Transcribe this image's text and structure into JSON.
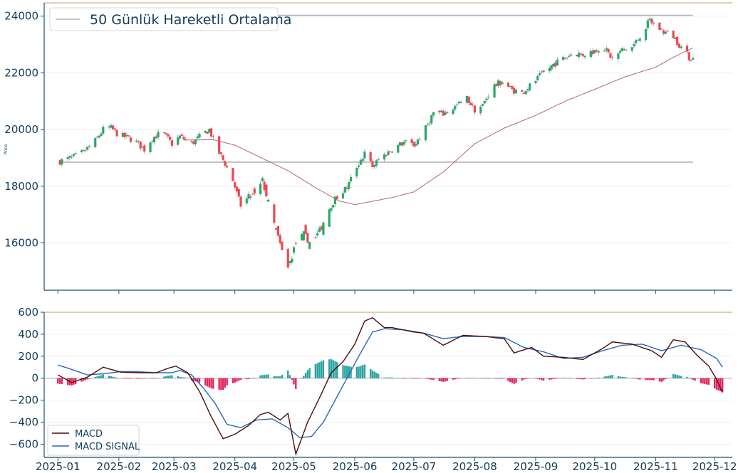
{
  "colors": {
    "up": "#26a969",
    "down": "#f0474f",
    "ma": "#b5657a",
    "hline": "#b4b4b4",
    "macd": "#4a0c0c",
    "signal": "#2568b8",
    "hist_pos": "#2aa3a1",
    "hist_neg": "#e3265e",
    "axis": "#1b4f72",
    "text": "#123c5a",
    "top_rule": "#c9b48a"
  },
  "chart_data": [
    {
      "type": "candlestick",
      "ylabel": "Price",
      "legend": {
        "entries": [
          "50 Günlük Hareketli Ortalama"
        ],
        "placement": "top-left"
      },
      "yticks": [
        16000,
        18000,
        20000,
        22000,
        24000
      ],
      "ylim": [
        14330,
        24470
      ],
      "horizontal_lines": [
        18850,
        24030
      ],
      "grid": true,
      "ohlc_anchors": [
        [
          "2025-01-02",
          18880
        ],
        [
          "2025-01-08",
          19000
        ],
        [
          "2025-01-14",
          19200
        ],
        [
          "2025-01-20",
          19600
        ],
        [
          "2025-01-24",
          20000
        ],
        [
          "2025-01-28",
          20050
        ],
        [
          "2025-02-01",
          19800
        ],
        [
          "2025-02-06",
          19700
        ],
        [
          "2025-02-10",
          19550
        ],
        [
          "2025-02-14",
          19300
        ],
        [
          "2025-02-18",
          19700
        ],
        [
          "2025-02-23",
          19900
        ],
        [
          "2025-02-28",
          19500
        ],
        [
          "2025-03-04",
          19750
        ],
        [
          "2025-03-10",
          19500
        ],
        [
          "2025-03-15",
          19800
        ],
        [
          "2025-03-19",
          20000
        ],
        [
          "2025-03-23",
          19300
        ],
        [
          "2025-03-27",
          18800
        ],
        [
          "2025-03-31",
          18200
        ],
        [
          "2025-04-04",
          17300
        ],
        [
          "2025-04-08",
          17600
        ],
        [
          "2025-04-12",
          17700
        ],
        [
          "2025-04-15",
          18200
        ],
        [
          "2025-04-20",
          16900
        ],
        [
          "2025-04-25",
          15700
        ],
        [
          "2025-04-28",
          15100
        ],
        [
          "2025-05-02",
          16000
        ],
        [
          "2025-05-06",
          16300
        ],
        [
          "2025-05-10",
          15950
        ],
        [
          "2025-05-14",
          16400
        ],
        [
          "2025-05-18",
          17100
        ],
        [
          "2025-05-21",
          17450
        ],
        [
          "2025-05-24",
          17700
        ],
        [
          "2025-05-28",
          17950
        ],
        [
          "2025-06-02",
          18700
        ],
        [
          "2025-06-06",
          19150
        ],
        [
          "2025-06-10",
          18700
        ],
        [
          "2025-06-14",
          19000
        ],
        [
          "2025-06-20",
          19300
        ],
        [
          "2025-06-26",
          19550
        ],
        [
          "2025-07-01",
          19450
        ],
        [
          "2025-07-06",
          19900
        ],
        [
          "2025-07-11",
          20600
        ],
        [
          "2025-07-16",
          20550
        ],
        [
          "2025-07-22",
          20800
        ],
        [
          "2025-07-28",
          21100
        ],
        [
          "2025-08-01",
          20700
        ],
        [
          "2025-08-05",
          20850
        ],
        [
          "2025-08-10",
          21500
        ],
        [
          "2025-08-15",
          21700
        ],
        [
          "2025-08-20",
          21400
        ],
        [
          "2025-08-25",
          21300
        ],
        [
          "2025-08-30",
          21600
        ],
        [
          "2025-09-05",
          22000
        ],
        [
          "2025-09-10",
          22300
        ],
        [
          "2025-09-15",
          22500
        ],
        [
          "2025-09-20",
          22700
        ],
        [
          "2025-09-25",
          22650
        ],
        [
          "2025-09-30",
          22750
        ],
        [
          "2025-10-05",
          22950
        ],
        [
          "2025-10-10",
          22500
        ],
        [
          "2025-10-15",
          22800
        ],
        [
          "2025-10-20",
          22900
        ],
        [
          "2025-10-25",
          23400
        ],
        [
          "2025-10-29",
          23850
        ],
        [
          "2025-11-01",
          23650
        ],
        [
          "2025-11-05",
          23450
        ],
        [
          "2025-11-10",
          23300
        ],
        [
          "2025-11-14",
          22900
        ],
        [
          "2025-11-18",
          22550
        ],
        [
          "2025-11-20",
          22500
        ]
      ],
      "ma_anchors": [
        [
          "2025-03-06",
          19630
        ],
        [
          "2025-03-21",
          19640
        ],
        [
          "2025-04-01",
          19450
        ],
        [
          "2025-04-16",
          18950
        ],
        [
          "2025-04-28",
          18550
        ],
        [
          "2025-05-12",
          17950
        ],
        [
          "2025-05-24",
          17480
        ],
        [
          "2025-06-01",
          17350
        ],
        [
          "2025-06-20",
          17600
        ],
        [
          "2025-07-01",
          17800
        ],
        [
          "2025-07-16",
          18500
        ],
        [
          "2025-08-01",
          19500
        ],
        [
          "2025-08-16",
          20050
        ],
        [
          "2025-09-01",
          20500
        ],
        [
          "2025-09-16",
          21000
        ],
        [
          "2025-10-01",
          21420
        ],
        [
          "2025-10-16",
          21850
        ],
        [
          "2025-11-01",
          22200
        ],
        [
          "2025-11-10",
          22550
        ],
        [
          "2025-11-20",
          22880
        ]
      ]
    },
    {
      "type": "line",
      "series": [
        {
          "name": "MACD"
        },
        {
          "name": "MACD SIGNAL"
        }
      ],
      "legend": {
        "placement": "bottom-left"
      },
      "yticks": [
        -600,
        -400,
        -200,
        0,
        200,
        400,
        600
      ],
      "ylim": [
        -720,
        600
      ],
      "grid": true,
      "xticks": [
        "2025-01",
        "2025-02",
        "2025-03",
        "2025-04",
        "2025-05",
        "2025-06",
        "2025-07",
        "2025-08",
        "2025-09",
        "2025-10",
        "2025-11",
        "2025-12"
      ],
      "xlim": [
        "2024-12-25",
        "2025-12-10"
      ],
      "macd_anchors": [
        [
          "2025-01-01",
          30
        ],
        [
          "2025-01-08",
          -40
        ],
        [
          "2025-01-16",
          10
        ],
        [
          "2025-01-24",
          100
        ],
        [
          "2025-02-02",
          55
        ],
        [
          "2025-02-10",
          50
        ],
        [
          "2025-02-20",
          50
        ],
        [
          "2025-02-26",
          90
        ],
        [
          "2025-03-02",
          110
        ],
        [
          "2025-03-08",
          50
        ],
        [
          "2025-03-14",
          -120
        ],
        [
          "2025-03-20",
          -350
        ],
        [
          "2025-03-26",
          -550
        ],
        [
          "2025-04-01",
          -510
        ],
        [
          "2025-04-08",
          -430
        ],
        [
          "2025-04-14",
          -330
        ],
        [
          "2025-04-18",
          -310
        ],
        [
          "2025-04-24",
          -380
        ],
        [
          "2025-04-28",
          -320
        ],
        [
          "2025-05-02",
          -690
        ],
        [
          "2025-05-08",
          -400
        ],
        [
          "2025-05-14",
          -180
        ],
        [
          "2025-05-20",
          50
        ],
        [
          "2025-05-26",
          150
        ],
        [
          "2025-06-01",
          310
        ],
        [
          "2025-06-06",
          520
        ],
        [
          "2025-06-10",
          550
        ],
        [
          "2025-06-16",
          460
        ],
        [
          "2025-06-20",
          460
        ],
        [
          "2025-07-01",
          420
        ],
        [
          "2025-07-06",
          410
        ],
        [
          "2025-07-16",
          300
        ],
        [
          "2025-07-26",
          390
        ],
        [
          "2025-08-06",
          380
        ],
        [
          "2025-08-16",
          360
        ],
        [
          "2025-08-21",
          230
        ],
        [
          "2025-08-30",
          280
        ],
        [
          "2025-09-05",
          200
        ],
        [
          "2025-09-15",
          190
        ],
        [
          "2025-09-25",
          170
        ],
        [
          "2025-10-05",
          270
        ],
        [
          "2025-10-10",
          330
        ],
        [
          "2025-10-20",
          310
        ],
        [
          "2025-10-30",
          250
        ],
        [
          "2025-11-04",
          190
        ],
        [
          "2025-11-10",
          350
        ],
        [
          "2025-11-16",
          330
        ],
        [
          "2025-11-22",
          210
        ],
        [
          "2025-11-28",
          110
        ],
        [
          "2025-12-02",
          -10
        ],
        [
          "2025-12-05",
          -130
        ]
      ],
      "signal_anchors": [
        [
          "2025-01-01",
          120
        ],
        [
          "2025-01-08",
          80
        ],
        [
          "2025-01-16",
          30
        ],
        [
          "2025-01-24",
          40
        ],
        [
          "2025-02-02",
          60
        ],
        [
          "2025-02-10",
          60
        ],
        [
          "2025-02-20",
          50
        ],
        [
          "2025-02-28",
          50
        ],
        [
          "2025-03-04",
          70
        ],
        [
          "2025-03-10",
          30
        ],
        [
          "2025-03-16",
          -90
        ],
        [
          "2025-03-22",
          -230
        ],
        [
          "2025-03-28",
          -420
        ],
        [
          "2025-04-04",
          -450
        ],
        [
          "2025-04-12",
          -380
        ],
        [
          "2025-04-20",
          -370
        ],
        [
          "2025-04-28",
          -450
        ],
        [
          "2025-05-04",
          -540
        ],
        [
          "2025-05-10",
          -530
        ],
        [
          "2025-05-16",
          -400
        ],
        [
          "2025-05-22",
          -200
        ],
        [
          "2025-05-28",
          0
        ],
        [
          "2025-06-03",
          200
        ],
        [
          "2025-06-10",
          420
        ],
        [
          "2025-06-16",
          450
        ],
        [
          "2025-06-26",
          440
        ],
        [
          "2025-07-06",
          410
        ],
        [
          "2025-07-16",
          360
        ],
        [
          "2025-07-26",
          380
        ],
        [
          "2025-08-06",
          380
        ],
        [
          "2025-08-16",
          370
        ],
        [
          "2025-08-26",
          280
        ],
        [
          "2025-09-05",
          240
        ],
        [
          "2025-09-15",
          180
        ],
        [
          "2025-09-25",
          190
        ],
        [
          "2025-10-05",
          250
        ],
        [
          "2025-10-15",
          300
        ],
        [
          "2025-10-25",
          310
        ],
        [
          "2025-11-04",
          250
        ],
        [
          "2025-11-14",
          300
        ],
        [
          "2025-11-24",
          260
        ],
        [
          "2025-12-02",
          180
        ],
        [
          "2025-12-05",
          100
        ]
      ]
    }
  ]
}
